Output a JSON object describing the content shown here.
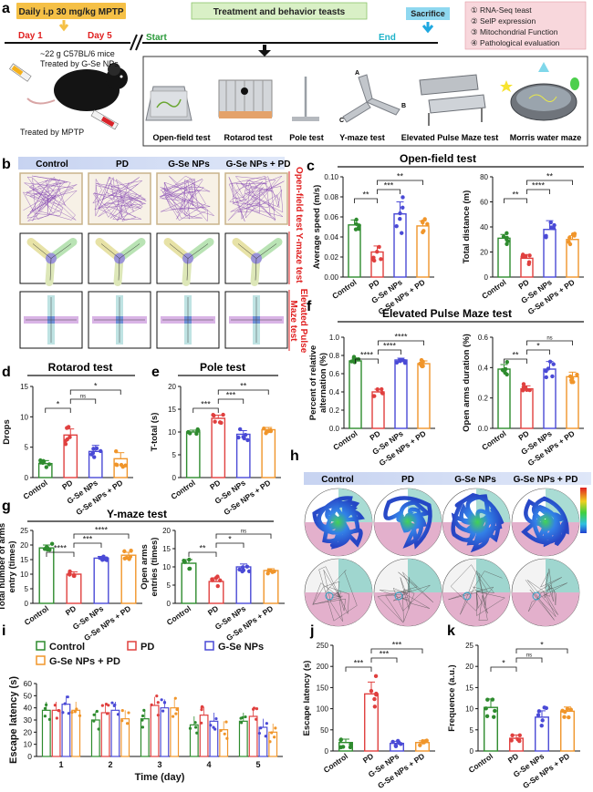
{
  "panel_letters": [
    "a",
    "b",
    "c",
    "d",
    "e",
    "f",
    "g",
    "h",
    "i",
    "j",
    "k"
  ],
  "colors": {
    "control": "#2e8b2e",
    "pd": "#e0403f",
    "gse": "#4a4ad6",
    "gsepd": "#f0952a"
  },
  "panel_a": {
    "dose_label": "Daily i.p 30 mg/kg MPTP",
    "day1": "Day 1",
    "day5": "Day 5",
    "mice_line1": "~22 g C57BL/6 mice",
    "mice_line2": "Treated by G-Se NPs",
    "mptp_label": "Treated by MPTP",
    "treatment_label": "Treatment and behavior teasts",
    "start": "Start",
    "end": "End",
    "sacrifice": "Sacrifice",
    "assays": [
      "① RNA-Seq teast",
      "② SelP  expression",
      "③ Mitochondrial Function",
      "④ Pathological evaluation"
    ],
    "tests": [
      "Open-field test",
      "Rotarod test",
      "Pole test",
      "Y-maze test",
      "Elevated Pulse Maze test",
      "Morris water maze"
    ],
    "ymaze_arms": [
      "A",
      "B",
      "C"
    ]
  },
  "panel_b": {
    "groups": [
      "Control",
      "PD",
      "G-Se NPs",
      "G-Se NPs + PD"
    ],
    "rows": [
      "Open-field test",
      "Y-maze test",
      "Elevated Pulse\nMaze test"
    ]
  },
  "panel_h": {
    "groups": [
      "Control",
      "PD",
      "G-Se NPs",
      "G-Se NPs + PD"
    ]
  },
  "titles": {
    "c": "Open-field test",
    "d": "Rotarod test",
    "e": "Pole test",
    "f": "Elevated Pulse Maze test",
    "g": "Y-maze test"
  },
  "chart_data": [
    {
      "id": "c1",
      "type": "bar",
      "categories": [
        "Control",
        "PD",
        "G-Se NPs",
        "G-Se NPs + PD"
      ],
      "values": [
        0.052,
        0.025,
        0.063,
        0.051
      ],
      "errors": [
        0.005,
        0.006,
        0.012,
        0.005
      ],
      "ylabel": "Average speed (m/s)",
      "ylim": [
        0,
        0.1
      ],
      "ticks": [
        0,
        0.02,
        0.04,
        0.06,
        0.08,
        0.1
      ],
      "tick_labels": [
        "0.00",
        "0.02",
        "0.04",
        "0.06",
        "0.08",
        "0.10"
      ],
      "sig": [
        "**",
        "***",
        "**"
      ]
    },
    {
      "id": "c2",
      "type": "bar",
      "categories": [
        "Control",
        "PD",
        "G-Se NPs",
        "G-Se NPs + PD"
      ],
      "values": [
        31,
        15,
        38,
        30
      ],
      "errors": [
        3,
        3,
        7,
        3
      ],
      "ylabel": "Total distance (m)",
      "ylim": [
        0,
        80
      ],
      "ticks": [
        0,
        20,
        40,
        60,
        80
      ],
      "tick_labels": [
        "0",
        "20",
        "40",
        "60",
        "80"
      ],
      "sig": [
        "**",
        "****",
        "**"
      ]
    },
    {
      "id": "d",
      "type": "bar",
      "categories": [
        "Control",
        "PD",
        "G-Se NPs",
        "G-Se NPs + PD"
      ],
      "values": [
        2.3,
        7.0,
        4.3,
        3.1
      ],
      "errors": [
        0.5,
        1.0,
        1.0,
        1.0
      ],
      "ylabel": "Drops",
      "ylim": [
        0,
        15
      ],
      "ticks": [
        0,
        5,
        10,
        15
      ],
      "tick_labels": [
        "0",
        "5",
        "10",
        "15"
      ],
      "sig": [
        "*",
        "ns",
        "*"
      ]
    },
    {
      "id": "e",
      "type": "bar",
      "categories": [
        "Control",
        "PD",
        "G-Se NPs",
        "G-Se NPs + PD"
      ],
      "values": [
        10,
        13,
        9.5,
        10.5
      ],
      "errors": [
        0.4,
        0.7,
        0.8,
        0.5
      ],
      "ylabel": "T-total (s)",
      "ylim": [
        0,
        20
      ],
      "ticks": [
        0,
        5,
        10,
        15,
        20
      ],
      "tick_labels": [
        "0",
        "5",
        "10",
        "15",
        "20"
      ],
      "sig": [
        "***",
        "***",
        "**"
      ]
    },
    {
      "id": "f1",
      "type": "bar",
      "categories": [
        "Control",
        "PD",
        "G-Se NPs",
        "G-Se NPs + PD"
      ],
      "values": [
        0.74,
        0.4,
        0.75,
        0.71
      ],
      "errors": [
        0.03,
        0.03,
        0.02,
        0.03
      ],
      "ylabel": "Percent of relative alternation (%)",
      "ylim": [
        0,
        1.0
      ],
      "ticks": [
        0,
        0.2,
        0.4,
        0.6,
        0.8,
        1.0
      ],
      "tick_labels": [
        "0.0",
        "0.2",
        "0.4",
        "0.6",
        "0.8",
        "1.0"
      ],
      "sig": [
        "****",
        "****",
        "****"
      ]
    },
    {
      "id": "f2",
      "type": "bar",
      "categories": [
        "Control",
        "PD",
        "G-Se NPs",
        "G-Se NPs + PD"
      ],
      "values": [
        0.39,
        0.26,
        0.39,
        0.34
      ],
      "errors": [
        0.03,
        0.02,
        0.05,
        0.03
      ],
      "ylabel": "Open arms duration (%)",
      "ylim": [
        0,
        0.6
      ],
      "ticks": [
        0,
        0.2,
        0.4,
        0.6
      ],
      "tick_labels": [
        "0.0",
        "0.2",
        "0.4",
        "0.6"
      ],
      "sig": [
        "**",
        "*",
        "ns"
      ]
    },
    {
      "id": "g1",
      "type": "bar",
      "categories": [
        "Control",
        "PD",
        "G-Se NPs",
        "G-Se NPs + PD"
      ],
      "values": [
        19,
        10,
        15.5,
        16.5
      ],
      "errors": [
        1,
        0.8,
        0.6,
        1
      ],
      "ylabel": "Total number of arms entry (times)",
      "ylim": [
        0,
        25
      ],
      "ticks": [
        0,
        5,
        10,
        15,
        20,
        25
      ],
      "tick_labels": [
        "0",
        "5",
        "10",
        "15",
        "20",
        "25"
      ],
      "sig": [
        "****",
        "***",
        "****"
      ]
    },
    {
      "id": "g2",
      "type": "bar",
      "categories": [
        "Control",
        "PD",
        "G-Se NPs",
        "G-Se NPs + PD"
      ],
      "values": [
        11,
        6,
        10,
        9
      ],
      "errors": [
        1,
        1,
        0.8,
        0.5
      ],
      "ylabel": "Open arms entries (times)",
      "ylim": [
        0,
        20
      ],
      "ticks": [
        0,
        5,
        10,
        15,
        20
      ],
      "tick_labels": [
        "0",
        "5",
        "10",
        "15",
        "20"
      ],
      "sig": [
        "**",
        "*",
        "ns"
      ]
    },
    {
      "id": "i",
      "type": "bar",
      "x": [
        "1",
        "2",
        "3",
        "4",
        "5"
      ],
      "series": [
        {
          "name": "Control",
          "values": [
            38,
            30,
            31,
            26,
            29
          ]
        },
        {
          "name": "PD",
          "values": [
            38,
            36,
            42,
            34,
            33
          ]
        },
        {
          "name": "G-Se NPs",
          "values": [
            43,
            38,
            40,
            29,
            24
          ]
        },
        {
          "name": "G-Se NPs + PD",
          "values": [
            38,
            31,
            40,
            22,
            20
          ]
        }
      ],
      "xlabel": "Time (day)",
      "ylabel": "Escape latency (s)",
      "ylim": [
        0,
        60
      ],
      "ticks": [
        0,
        10,
        20,
        30,
        40,
        50,
        60
      ],
      "tick_labels": [
        "0",
        "10",
        "20",
        "30",
        "40",
        "50",
        "60"
      ]
    },
    {
      "id": "j",
      "type": "bar",
      "categories": [
        "Control",
        "PD",
        "G-Se NPs",
        "G-Se NPs + PD"
      ],
      "values": [
        20,
        135,
        18,
        20
      ],
      "errors": [
        8,
        28,
        5,
        4
      ],
      "ylabel": "Escape latency (s)",
      "ylim": [
        0,
        250
      ],
      "ticks": [
        0,
        50,
        100,
        150,
        200,
        250
      ],
      "tick_labels": [
        "0",
        "50",
        "100",
        "150",
        "200",
        "250"
      ],
      "sig": [
        "***",
        "***",
        "***"
      ]
    },
    {
      "id": "k",
      "type": "bar",
      "categories": [
        "Control",
        "PD",
        "G-Se NPs",
        "G-Se NPs + PD"
      ],
      "values": [
        10.3,
        3.0,
        8.0,
        9.4
      ],
      "errors": [
        2.0,
        0.8,
        1.5,
        1.0
      ],
      "ylabel": "Frequence (a.u.)",
      "ylim": [
        0,
        25
      ],
      "ticks": [
        0,
        5,
        10,
        15,
        20,
        25
      ],
      "tick_labels": [
        "0",
        "5",
        "10",
        "15",
        "20",
        "25"
      ],
      "sig": [
        "*",
        "ns",
        "*"
      ]
    }
  ]
}
